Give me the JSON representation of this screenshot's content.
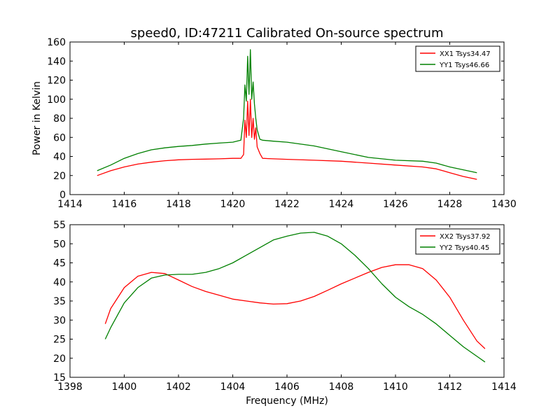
{
  "figure_title": "speed0, ID:47211 Calibrated On-source spectrum",
  "chart_data": [
    {
      "type": "line",
      "title": "speed0, ID:47211 Calibrated On-source spectrum",
      "xlabel": "",
      "ylabel": "Power in Kelvin",
      "xlim": [
        1414,
        1430
      ],
      "ylim": [
        0,
        160
      ],
      "xticks": [
        "1414",
        "1416",
        "1418",
        "1420",
        "1422",
        "1424",
        "1426",
        "1428",
        "1430"
      ],
      "yticks": [
        "0",
        "20",
        "40",
        "60",
        "80",
        "100",
        "120",
        "140",
        "160"
      ],
      "grid": false,
      "legend_position": "top-right",
      "series": [
        {
          "name": "XX1 Tsys34.47",
          "color": "#ff0000",
          "x": [
            1415.0,
            1415.5,
            1416.0,
            1416.5,
            1417.0,
            1417.5,
            1418.0,
            1418.5,
            1419.0,
            1419.5,
            1420.0,
            1420.3,
            1420.4,
            1420.45,
            1420.5,
            1420.55,
            1420.6,
            1420.65,
            1420.7,
            1420.75,
            1420.8,
            1420.85,
            1420.9,
            1421.0,
            1421.1,
            1421.5,
            1422.0,
            1423.0,
            1424.0,
            1425.0,
            1426.0,
            1427.0,
            1427.5,
            1428.0,
            1428.5,
            1429.0
          ],
          "y": [
            20,
            25,
            29,
            32,
            34,
            35.5,
            36.5,
            37,
            37.2,
            37.5,
            38,
            38,
            42,
            78,
            60,
            98,
            62,
            100,
            60,
            80,
            58,
            70,
            50,
            43,
            38,
            37.5,
            37,
            36,
            35,
            33,
            31,
            29,
            27,
            23,
            19,
            16
          ]
        },
        {
          "name": "YY1 Tsys46.66",
          "color": "#008000",
          "x": [
            1415.0,
            1415.5,
            1416.0,
            1416.5,
            1417.0,
            1417.5,
            1418.0,
            1418.5,
            1419.0,
            1419.5,
            1420.0,
            1420.3,
            1420.4,
            1420.45,
            1420.5,
            1420.55,
            1420.6,
            1420.65,
            1420.7,
            1420.75,
            1420.8,
            1420.85,
            1420.9,
            1421.0,
            1421.1,
            1421.5,
            1422.0,
            1423.0,
            1424.0,
            1425.0,
            1426.0,
            1427.0,
            1427.5,
            1428.0,
            1428.5,
            1429.0
          ],
          "y": [
            25,
            31,
            38,
            43,
            47,
            49,
            50.5,
            51.5,
            53,
            54,
            55,
            57,
            80,
            115,
            98,
            145,
            105,
            152,
            100,
            118,
            95,
            80,
            68,
            58,
            57,
            56,
            55,
            51,
            45,
            39,
            36,
            35,
            33,
            29,
            26,
            23
          ]
        }
      ]
    },
    {
      "type": "line",
      "title": "",
      "xlabel": "Frequency (MHz)",
      "ylabel": "",
      "xlim": [
        1398,
        1414
      ],
      "ylim": [
        15,
        55
      ],
      "xticks": [
        "1398",
        "1400",
        "1402",
        "1404",
        "1406",
        "1408",
        "1410",
        "1412",
        "1414"
      ],
      "yticks": [
        "15",
        "20",
        "25",
        "30",
        "35",
        "40",
        "45",
        "50",
        "55"
      ],
      "grid": false,
      "legend_position": "top-right",
      "series": [
        {
          "name": "XX2 Tsys37.92",
          "color": "#ff0000",
          "x": [
            1399.3,
            1399.5,
            1400.0,
            1400.5,
            1401.0,
            1401.5,
            1402.0,
            1402.5,
            1403.0,
            1403.5,
            1404.0,
            1404.5,
            1405.0,
            1405.5,
            1406.0,
            1406.5,
            1407.0,
            1407.5,
            1408.0,
            1408.5,
            1409.0,
            1409.5,
            1410.0,
            1410.5,
            1411.0,
            1411.5,
            1412.0,
            1412.5,
            1413.0,
            1413.3
          ],
          "y": [
            29,
            33,
            38.5,
            41.5,
            42.5,
            42.2,
            40.5,
            38.8,
            37.5,
            36.5,
            35.5,
            35,
            34.5,
            34.2,
            34.3,
            35,
            36.2,
            37.8,
            39.5,
            41,
            42.5,
            43.8,
            44.5,
            44.5,
            43.5,
            40.5,
            36,
            30,
            24.5,
            22.5
          ]
        },
        {
          "name": "YY2 Tsys40.45",
          "color": "#008000",
          "x": [
            1399.3,
            1399.5,
            1400.0,
            1400.5,
            1401.0,
            1401.5,
            1402.0,
            1402.5,
            1403.0,
            1403.5,
            1404.0,
            1404.5,
            1405.0,
            1405.5,
            1406.0,
            1406.5,
            1407.0,
            1407.5,
            1408.0,
            1408.5,
            1409.0,
            1409.5,
            1410.0,
            1410.5,
            1411.0,
            1411.5,
            1412.0,
            1412.5,
            1413.0,
            1413.3
          ],
          "y": [
            25,
            28,
            34.5,
            38.5,
            41,
            41.8,
            42,
            42,
            42.5,
            43.5,
            45,
            47,
            49,
            51,
            52,
            52.8,
            53,
            52,
            50,
            47,
            43.5,
            39.5,
            36,
            33.5,
            31.5,
            29,
            26,
            23,
            20.5,
            19
          ]
        }
      ]
    }
  ]
}
